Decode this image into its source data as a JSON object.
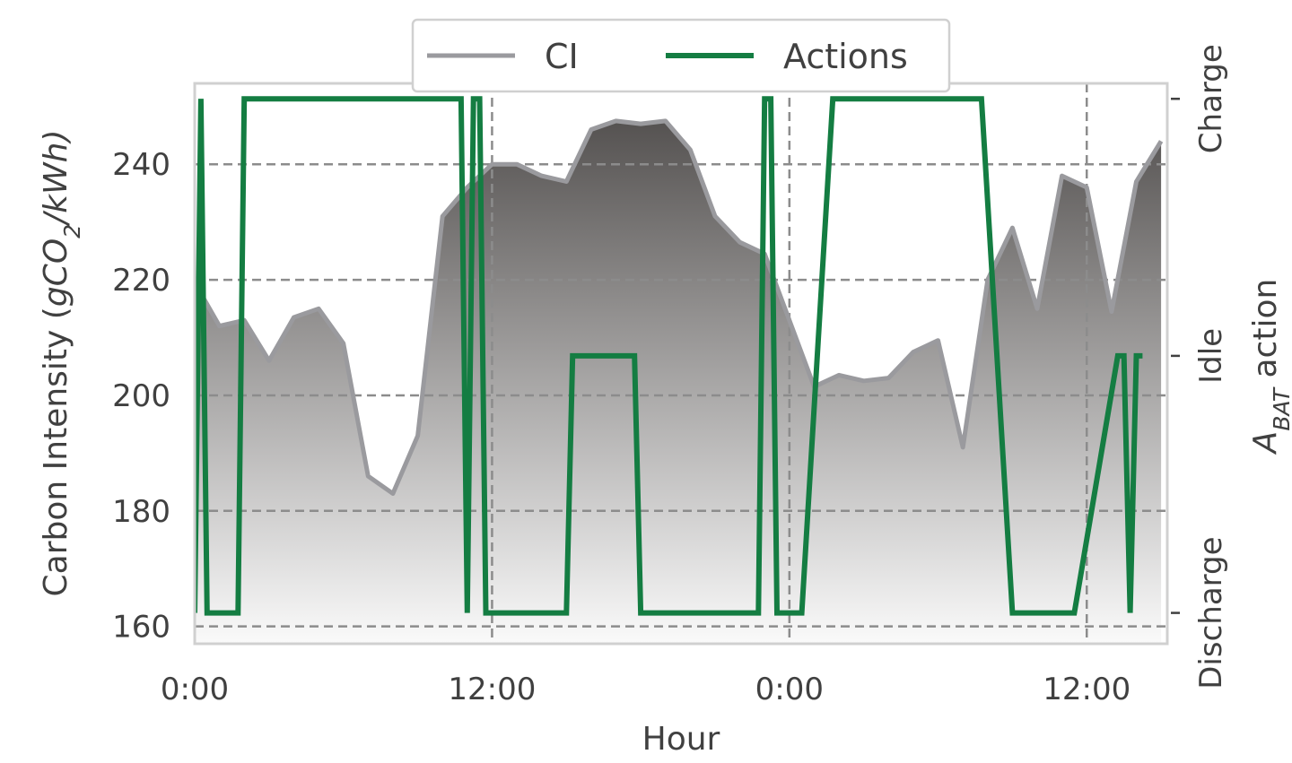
{
  "chart_data": {
    "type": "line",
    "xlabel": "Hour",
    "ylabel_left": {
      "pre": "Carbon Intensity (",
      "main": "gCO",
      "sub": "2",
      "post": "/kWh)"
    },
    "ylabel_right": {
      "main": "A",
      "sub": "BAT",
      "post": " action"
    },
    "x_ticks": [
      {
        "hours": 0,
        "label": "0:00"
      },
      {
        "hours": 12,
        "label": "12:00"
      },
      {
        "hours": 24,
        "label": "0:00"
      },
      {
        "hours": 36,
        "label": "12:00"
      }
    ],
    "x_gridlines_hours": [
      12,
      24,
      36
    ],
    "xlim_hours": [
      0,
      39.25
    ],
    "ylim_left": [
      157,
      254
    ],
    "y_ticks_left": [
      160,
      180,
      200,
      220,
      240
    ],
    "right_levels": [
      "Discharge",
      "Idle",
      "Charge"
    ],
    "right_ylim": [
      -0.06,
      1.03
    ],
    "legend": {
      "placement": "top-center",
      "entries": [
        "CI",
        "Actions"
      ]
    },
    "colors": {
      "ci": "#9a9a9e",
      "actions": "#147d42",
      "fill_top": "#555251",
      "fill_bottom": "#fafafa",
      "grid": "#8c8c8c",
      "frame": "#d0d0d0"
    },
    "series": [
      {
        "name": "CI",
        "x_hours": [
          0,
          1,
          2,
          3,
          4,
          5,
          6,
          7,
          8,
          9,
          10,
          11,
          12,
          13,
          14,
          15,
          16,
          17,
          18,
          19,
          20,
          21,
          22,
          23,
          24,
          25,
          26,
          27,
          28,
          29,
          30,
          31,
          32,
          33,
          34,
          35,
          36,
          37,
          38,
          39
        ],
        "values": [
          219.5,
          212,
          213,
          206,
          213.5,
          215,
          209,
          186,
          183,
          193,
          231,
          236,
          240,
          240,
          238,
          237,
          246,
          247.5,
          247,
          247.5,
          242.5,
          231,
          226.5,
          224.5,
          213,
          201.5,
          203.5,
          202.5,
          203,
          207.5,
          209.5,
          191,
          220,
          229,
          215,
          238,
          236,
          214.5,
          237,
          244
        ]
      },
      {
        "name": "Actions",
        "x_hours": [
          0,
          0.25,
          0.5,
          1.75,
          2,
          10.75,
          11,
          11.25,
          11.5,
          11.75,
          12,
          15,
          15.25,
          17.75,
          18,
          22.75,
          23,
          23.25,
          23.5,
          24.5,
          25.75,
          26,
          30.5,
          30.75,
          31.75,
          33,
          35.25,
          35.5,
          37.25,
          37.5,
          37.75,
          38,
          38.25
        ],
        "values": [
          0,
          1,
          0,
          0,
          1,
          1,
          0,
          1,
          1,
          0,
          0,
          0,
          0.5,
          0.5,
          0,
          0,
          1,
          1,
          0,
          0,
          1,
          1,
          1,
          1,
          1,
          0,
          0,
          0,
          0.5,
          0.5,
          0,
          0.5,
          0.5
        ],
        "note_values": "0 = Discharge, 0.5 = Idle, 1 = Charge"
      }
    ]
  }
}
